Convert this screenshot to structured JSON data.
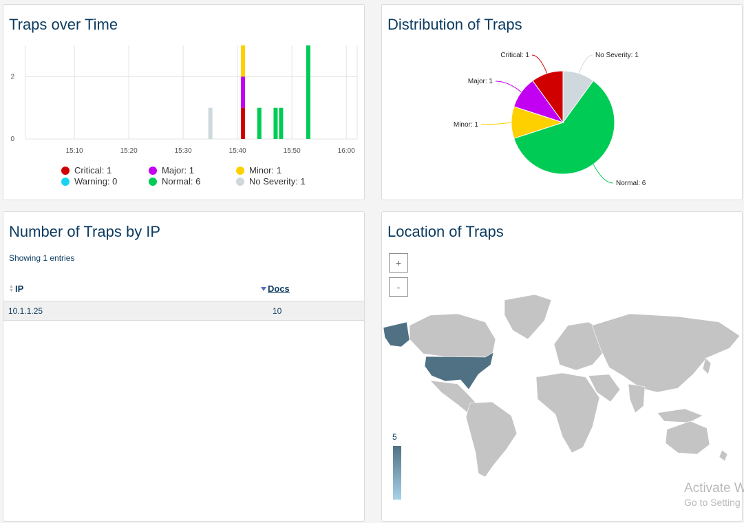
{
  "panels": {
    "traps_over_time": {
      "title": "Traps over Time"
    },
    "distribution": {
      "title": "Distribution of Traps"
    },
    "by_ip": {
      "title": "Number of Traps by IP",
      "showing": "Showing 1 entries",
      "columns": [
        "IP",
        "Docs"
      ],
      "rows": [
        {
          "ip": "10.1.1.25",
          "docs": "10"
        }
      ]
    },
    "location": {
      "title": "Location of Traps",
      "zoom_in": "+",
      "zoom_out": "-",
      "scale_max": "5"
    }
  },
  "legend": [
    {
      "label": "Critical: 1",
      "color": "#d10000"
    },
    {
      "label": "Major: 1",
      "color": "#c200f2"
    },
    {
      "label": "Minor: 1",
      "color": "#ffd000"
    },
    {
      "label": "Warning: 0",
      "color": "#17d4f0"
    },
    {
      "label": "Normal: 6",
      "color": "#00cc55"
    },
    {
      "label": "No Severity: 1",
      "color": "#cfd8dc"
    }
  ],
  "chart_data": [
    {
      "type": "bar",
      "stacked": true,
      "x_ticks": [
        "15:10",
        "15:20",
        "15:30",
        "15:40",
        "15:50",
        "16:00"
      ],
      "x_range": [
        "15:01",
        "16:02"
      ],
      "y_ticks": [
        0,
        2
      ],
      "ylim": [
        0,
        3
      ],
      "grid": true,
      "series": [
        {
          "name": "No Severity",
          "color": "#cfd8dc",
          "points": [
            {
              "x": "15:35",
              "y": 1
            }
          ]
        },
        {
          "name": "Critical",
          "color": "#d10000",
          "points": [
            {
              "x": "15:41",
              "y": 1
            }
          ]
        },
        {
          "name": "Major",
          "color": "#c200f2",
          "points": [
            {
              "x": "15:41",
              "y": 1
            }
          ]
        },
        {
          "name": "Minor",
          "color": "#ffd000",
          "points": [
            {
              "x": "15:41",
              "y": 1
            }
          ]
        },
        {
          "name": "Normal",
          "color": "#00cc55",
          "points": [
            {
              "x": "15:44",
              "y": 1
            },
            {
              "x": "15:47",
              "y": 1
            },
            {
              "x": "15:48",
              "y": 1
            },
            {
              "x": "15:53",
              "y": 3
            }
          ]
        }
      ]
    },
    {
      "type": "pie",
      "slices": [
        {
          "label": "No Severity: 1",
          "value": 1,
          "color": "#cfd8dc"
        },
        {
          "label": "Normal: 6",
          "value": 6,
          "color": "#00cc55"
        },
        {
          "label": "Minor: 1",
          "value": 1,
          "color": "#ffd000"
        },
        {
          "label": "Major: 1",
          "value": 1,
          "color": "#c200f2"
        },
        {
          "label": "Critical: 1",
          "value": 1,
          "color": "#d10000"
        }
      ]
    }
  ],
  "map": {
    "land_color": "#c4c4c4",
    "highlight_color": "#4f7183",
    "highlighted": [
      "United States"
    ],
    "scale_colors": [
      "#4f7183",
      "#a8d2e8"
    ]
  },
  "watermark": {
    "line1": "Activate W",
    "line2": "Go to Setting"
  }
}
